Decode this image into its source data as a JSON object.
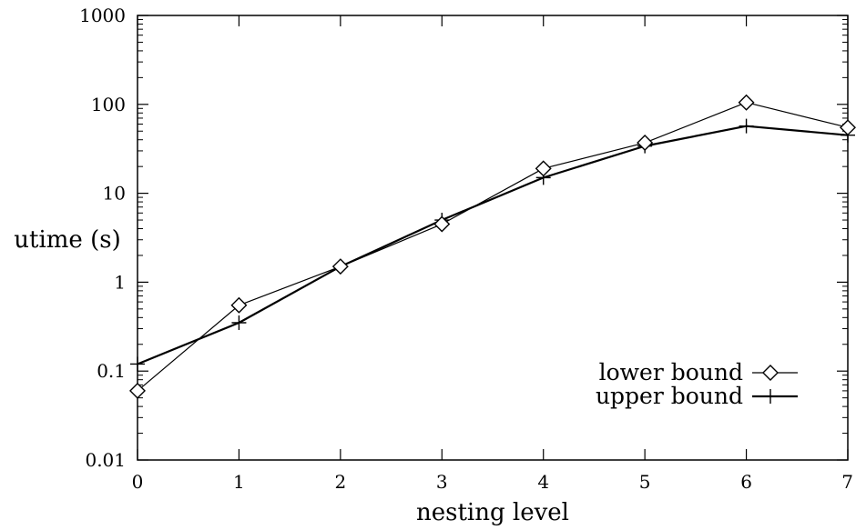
{
  "chart_data": {
    "type": "line",
    "xlabel": "nesting level",
    "ylabel": "utime (s)",
    "y_scale": "log",
    "xlim": [
      0,
      7
    ],
    "ylim": [
      0.01,
      1000
    ],
    "x_ticks": [
      "0",
      "1",
      "2",
      "3",
      "4",
      "5",
      "6",
      "7"
    ],
    "y_ticks": [
      "0.01",
      "0.1",
      "1",
      "10",
      "100",
      "1000"
    ],
    "grid": false,
    "legend_position": "bottom-right",
    "x": [
      0,
      1,
      2,
      3,
      4,
      5,
      6,
      7
    ],
    "series": [
      {
        "name": "lower bound",
        "marker": "diamond",
        "values": [
          0.06,
          0.55,
          1.5,
          4.5,
          19,
          37,
          105,
          55
        ]
      },
      {
        "name": "upper bound",
        "marker": "plus",
        "values": [
          0.12,
          0.35,
          1.5,
          5,
          15,
          34,
          57,
          45
        ]
      }
    ]
  }
}
